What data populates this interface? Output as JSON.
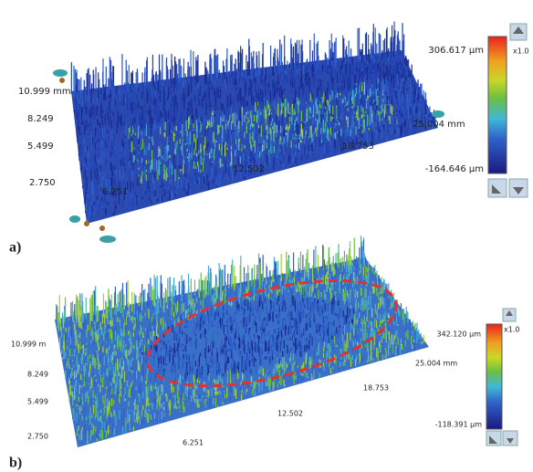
{
  "panels": [
    {
      "label": "a)",
      "axis_labels": {
        "y": [
          "10.999 mm",
          "8.249",
          "5.499",
          "2.750"
        ],
        "x": [
          "6.251",
          "12.502",
          "18.753",
          "25.004 mm"
        ]
      },
      "colorbar": {
        "max": "306.617 µm",
        "min": "-164.646 µm",
        "scale": "x1.0"
      }
    },
    {
      "label": "b)",
      "axis_labels": {
        "y": [
          "10.999 m",
          "8.249",
          "5.499",
          "2.750"
        ],
        "x": [
          "6.251",
          "12.502",
          "18.753",
          "25.004 mm"
        ]
      },
      "colorbar": {
        "max": "342.120 µm",
        "min": "-118.391 µm",
        "scale": "x1.0"
      }
    }
  ]
}
